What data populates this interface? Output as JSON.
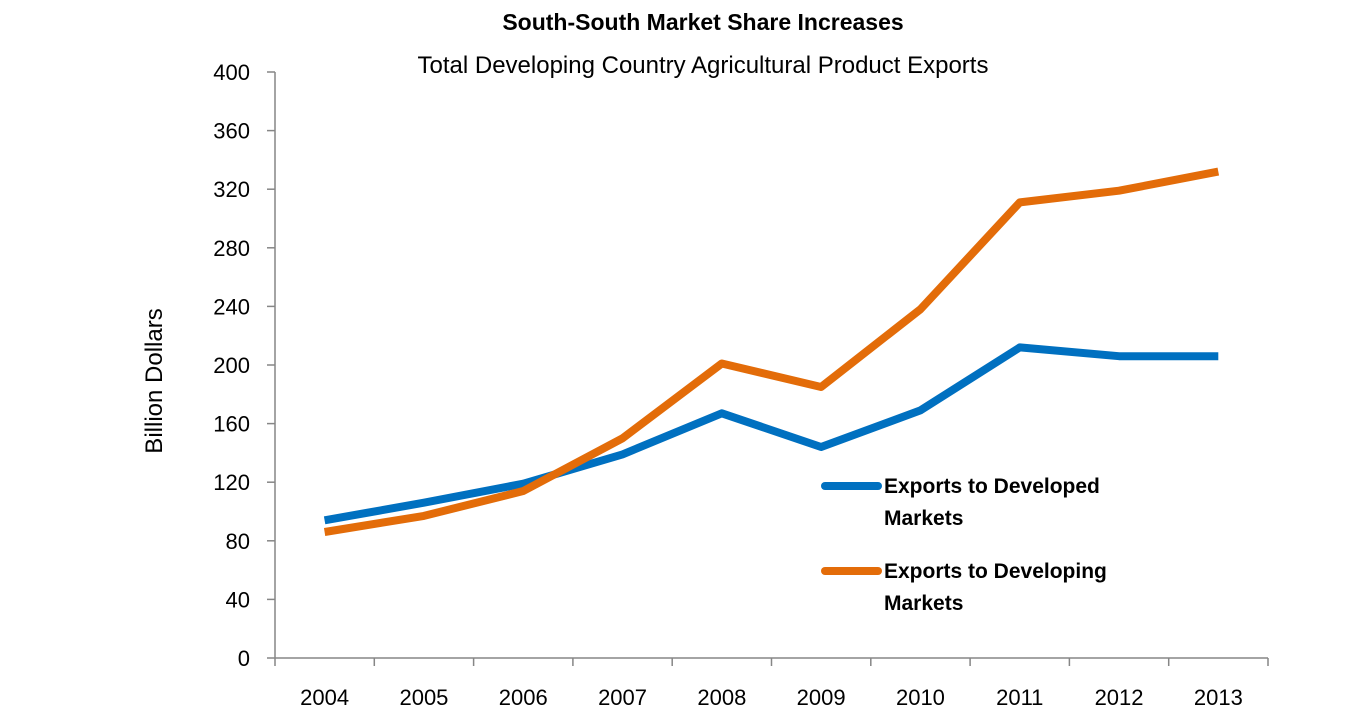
{
  "chart_data": {
    "type": "line",
    "title": "South-South Market Share Increases",
    "subtitle": "Total Developing Country Agricultural Product Exports",
    "xlabel": "",
    "ylabel": "Billion Dollars",
    "ylim": [
      0,
      400
    ],
    "yticks": [
      0,
      40,
      80,
      120,
      160,
      200,
      240,
      280,
      320,
      360,
      400
    ],
    "x": [
      "2004",
      "2005",
      "2006",
      "2007",
      "2008",
      "2009",
      "2010",
      "2011",
      "2012",
      "2013"
    ],
    "series": [
      {
        "name": "Exports to Developed Markets",
        "label_lines": [
          "Exports to Developed",
          "Markets"
        ],
        "color": "#0070C0",
        "values": [
          94,
          106,
          119,
          139,
          167,
          144,
          169,
          212,
          206,
          206
        ]
      },
      {
        "name": "Exports to Developing Markets",
        "label_lines": [
          "Exports to Developing",
          "Markets"
        ],
        "color": "#E36C09",
        "values": [
          86,
          97,
          114,
          150,
          201,
          185,
          238,
          311,
          319,
          332
        ]
      }
    ],
    "grid": false,
    "legend_position": "right-center"
  }
}
